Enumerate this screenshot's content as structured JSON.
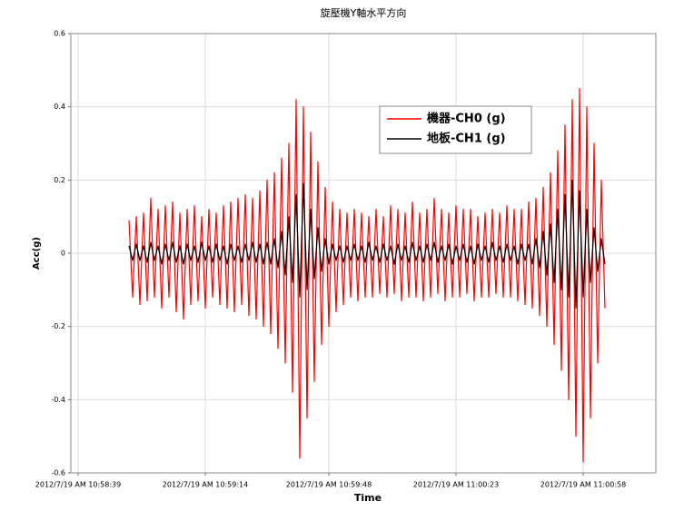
{
  "chart_data": {
    "type": "line",
    "title": "旋壓機Y軸水平方向",
    "x_label": "Time",
    "y_label": "Acc(g)",
    "x": [
      39533,
      39534,
      39535,
      39536,
      39537,
      39538,
      39539,
      39540,
      39541,
      39542,
      39543,
      39544,
      39545,
      39546,
      39547,
      39548,
      39549,
      39550,
      39551,
      39552,
      39553,
      39554,
      39555,
      39556,
      39557,
      39558,
      39559,
      39560,
      39561,
      39562,
      39563,
      39564,
      39565,
      39566,
      39567,
      39568,
      39569,
      39570,
      39571,
      39572,
      39573,
      39574,
      39575,
      39576,
      39577,
      39578,
      39579,
      39580,
      39581,
      39582,
      39583,
      39584,
      39585,
      39586,
      39587,
      39588,
      39589,
      39590,
      39591,
      39592,
      39593,
      39594,
      39595,
      39596,
      39597,
      39598,
      39599,
      39600,
      39601,
      39602,
      39603,
      39604,
      39605,
      39606,
      39607,
      39608,
      39609,
      39610,
      39611,
      39612,
      39613,
      39614,
      39615,
      39616,
      39617,
      39618,
      39619,
      39620,
      39621,
      39622,
      39623,
      39624,
      39625,
      39626,
      39627,
      39628,
      39629,
      39630,
      39631,
      39632,
      39633,
      39634,
      39635,
      39636,
      39637,
      39638,
      39639,
      39640,
      39641,
      39642,
      39643,
      39644,
      39645,
      39646,
      39647,
      39648,
      39649,
      39650,
      39651,
      39652,
      39653,
      39654,
      39655,
      39656,
      39657,
      39658,
      39659,
      39660,
      39661,
      39662,
      39663,
      39664
    ],
    "series": [
      {
        "name": "機器-CH0 (g)",
        "color": "#ff0000",
        "values": [
          0.09,
          -0.12,
          0.1,
          -0.14,
          0.11,
          -0.13,
          0.15,
          -0.12,
          0.12,
          -0.15,
          0.13,
          -0.12,
          0.14,
          -0.16,
          0.11,
          -0.18,
          0.12,
          -0.14,
          0.13,
          -0.13,
          0.1,
          -0.15,
          0.12,
          -0.12,
          0.11,
          -0.14,
          0.13,
          -0.15,
          0.14,
          -0.16,
          0.15,
          -0.14,
          0.16,
          -0.17,
          0.15,
          -0.18,
          0.17,
          -0.2,
          0.2,
          -0.22,
          0.22,
          -0.26,
          0.26,
          -0.3,
          0.3,
          -0.38,
          0.42,
          -0.56,
          0.4,
          -0.45,
          0.33,
          -0.35,
          0.25,
          -0.25,
          0.18,
          -0.2,
          0.14,
          -0.16,
          0.12,
          -0.14,
          0.11,
          -0.12,
          0.12,
          -0.13,
          0.11,
          -0.12,
          0.1,
          -0.12,
          0.12,
          -0.11,
          0.1,
          -0.12,
          0.13,
          -0.11,
          0.12,
          -0.13,
          0.11,
          -0.12,
          0.14,
          -0.12,
          0.11,
          -0.13,
          0.12,
          -0.12,
          0.15,
          -0.11,
          0.12,
          -0.13,
          0.11,
          -0.12,
          0.13,
          -0.12,
          0.12,
          -0.11,
          0.12,
          -0.13,
          0.1,
          -0.12,
          0.11,
          -0.12,
          0.12,
          -0.11,
          0.11,
          -0.12,
          0.13,
          -0.12,
          0.12,
          -0.13,
          0.12,
          -0.14,
          0.14,
          -0.15,
          0.15,
          -0.17,
          0.18,
          -0.2,
          0.22,
          -0.25,
          0.28,
          -0.32,
          0.35,
          -0.4,
          0.42,
          -0.5,
          0.45,
          -0.57,
          0.4,
          -0.45,
          0.3,
          -0.3,
          0.2,
          -0.15
        ]
      },
      {
        "name": "地板-CH1 (g)",
        "color": "#000000",
        "values": [
          0.02,
          -0.02,
          0.025,
          -0.02,
          0.02,
          -0.025,
          0.03,
          -0.02,
          0.02,
          -0.03,
          0.025,
          -0.02,
          0.03,
          -0.025,
          0.02,
          -0.03,
          0.025,
          -0.02,
          0.02,
          -0.025,
          0.03,
          -0.02,
          0.02,
          -0.025,
          0.025,
          -0.02,
          0.02,
          -0.03,
          0.025,
          -0.02,
          0.02,
          -0.025,
          0.025,
          -0.02,
          0.03,
          -0.025,
          0.025,
          -0.03,
          0.03,
          -0.03,
          0.04,
          -0.04,
          0.06,
          -0.06,
          0.1,
          -0.08,
          0.16,
          -0.12,
          0.19,
          -0.1,
          0.12,
          -0.07,
          0.07,
          -0.05,
          0.04,
          -0.03,
          0.025,
          -0.02,
          0.02,
          -0.025,
          0.02,
          -0.02,
          0.025,
          -0.02,
          0.02,
          -0.025,
          0.03,
          -0.02,
          0.02,
          -0.025,
          0.025,
          -0.02,
          0.02,
          -0.03,
          0.025,
          -0.02,
          0.02,
          -0.025,
          0.03,
          -0.02,
          0.02,
          -0.025,
          0.025,
          -0.02,
          0.03,
          -0.025,
          0.02,
          -0.02,
          0.025,
          -0.03,
          0.02,
          -0.02,
          0.025,
          -0.025,
          0.02,
          -0.03,
          0.025,
          -0.02,
          0.02,
          -0.025,
          0.03,
          -0.02,
          0.02,
          -0.025,
          0.025,
          -0.02,
          0.02,
          -0.03,
          0.025,
          -0.02,
          0.025,
          -0.03,
          0.04,
          -0.04,
          0.06,
          -0.06,
          0.08,
          -0.08,
          0.12,
          -0.1,
          0.16,
          -0.12,
          0.2,
          -0.15,
          0.17,
          -0.12,
          0.12,
          -0.08,
          0.07,
          -0.05,
          0.04,
          -0.03
        ]
      }
    ],
    "xlim": [
      39517,
      39678
    ],
    "xticks": [
      {
        "value": 39519,
        "label": "2012/7/19 AM 10:58:39"
      },
      {
        "value": 39554,
        "label": "2012/7/19 AM 10:59:14"
      },
      {
        "value": 39588,
        "label": "2012/7/19 AM 10:59:48"
      },
      {
        "value": 39623,
        "label": "2012/7/19 AM 11:00:23"
      },
      {
        "value": 39658,
        "label": "2012/7/19 AM 11:00:58"
      }
    ],
    "ylim": [
      -0.6,
      0.6
    ],
    "yticks": [
      0.6,
      0.4,
      0.2,
      0,
      -0.2,
      -0.4,
      -0.6
    ],
    "grid": true,
    "legend": "upper right"
  }
}
